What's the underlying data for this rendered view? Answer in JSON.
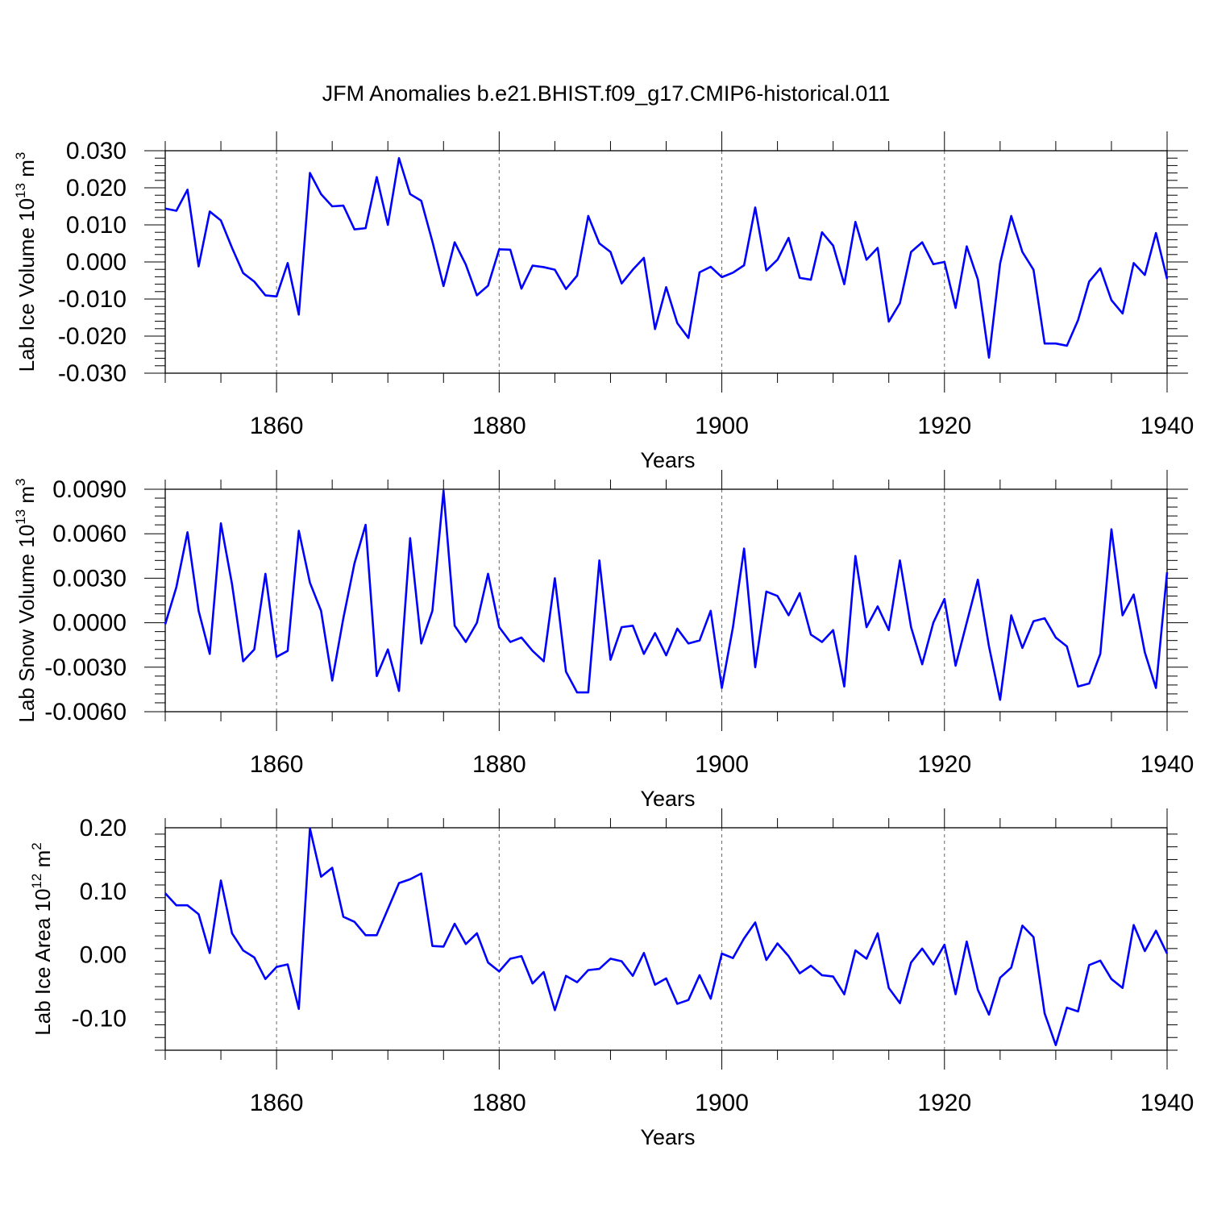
{
  "title": "JFM Anomalies b.e21.BHIST.f09_g17.CMIP6-historical.011",
  "line_color": "#0000ff",
  "chart_data": [
    {
      "type": "line",
      "ylabel_prefix": "Lab Ice Volume 10",
      "ylabel_exp": "13",
      "ylabel_unit": " m",
      "ylabel_unit_exp": "3",
      "xlabel": "Years",
      "xlim": [
        1850,
        1940
      ],
      "ylim": [
        -0.03,
        0.03
      ],
      "xticks": [
        1860,
        1880,
        1900,
        1920,
        1940
      ],
      "xtick_labels": [
        "1860",
        "1880",
        "1900",
        "1920",
        "1940"
      ],
      "yticks": [
        -0.03,
        -0.02,
        -0.01,
        0.0,
        0.01,
        0.02,
        0.03
      ],
      "ytick_labels": [
        "-0.030",
        "-0.020",
        "-0.010",
        "0.000",
        "0.010",
        "0.020",
        "0.030"
      ],
      "series": [
        {
          "name": "Lab Ice Volume",
          "x_start": 1850,
          "values": [
            0.0144,
            0.0138,
            0.0195,
            -0.0012,
            0.0136,
            0.0112,
            0.0038,
            -0.003,
            -0.0053,
            -0.009,
            -0.0093,
            -0.0003,
            -0.0142,
            0.024,
            0.0183,
            0.015,
            0.0152,
            0.0088,
            0.0091,
            0.0229,
            0.01,
            0.028,
            0.0183,
            0.0165,
            0.0055,
            -0.0065,
            0.0053,
            -0.0007,
            -0.009,
            -0.0064,
            0.0034,
            0.0033,
            -0.0072,
            -0.001,
            -0.0014,
            -0.0021,
            -0.0073,
            -0.0037,
            0.0124,
            0.005,
            0.0027,
            -0.0058,
            -0.0021,
            0.0011,
            -0.0181,
            -0.0068,
            -0.0165,
            -0.0205,
            -0.0028,
            -0.0013,
            -0.0041,
            -0.0029,
            -0.0009,
            0.0147,
            -0.0023,
            0.0006,
            0.0065,
            -0.0043,
            -0.0048,
            0.008,
            0.0044,
            -0.006,
            0.0108,
            0.0006,
            0.0038,
            -0.0161,
            -0.0111,
            0.0027,
            0.0053,
            -0.0006,
            0.0,
            -0.0124,
            0.0042,
            -0.0047,
            -0.0258,
            -0.0004,
            0.0124,
            0.0027,
            -0.0021,
            -0.022,
            -0.022,
            -0.0226,
            -0.0157,
            -0.0053,
            -0.0017,
            -0.0103,
            -0.0139,
            -0.0003,
            -0.0035,
            0.0078,
            -0.0046
          ]
        }
      ]
    },
    {
      "type": "line",
      "ylabel_prefix": "Lab Snow Volume 10",
      "ylabel_exp": "13",
      "ylabel_unit": " m",
      "ylabel_unit_exp": "3",
      "xlabel": "Years",
      "xlim": [
        1850,
        1940
      ],
      "ylim": [
        -0.006,
        0.009
      ],
      "xticks": [
        1860,
        1880,
        1900,
        1920,
        1940
      ],
      "xtick_labels": [
        "1860",
        "1880",
        "1900",
        "1920",
        "1940"
      ],
      "yticks": [
        -0.006,
        -0.003,
        0.0,
        0.003,
        0.006,
        0.009
      ],
      "ytick_labels": [
        "-0.0060",
        "-0.0030",
        "0.0000",
        "0.0030",
        "0.0060",
        "0.0090"
      ],
      "series": [
        {
          "name": "Lab Snow Volume",
          "x_start": 1850,
          "values": [
            -0.0001,
            0.0024,
            0.0061,
            0.0008,
            -0.0021,
            0.0067,
            0.0026,
            -0.0026,
            -0.0018,
            0.0033,
            -0.0023,
            -0.0019,
            0.0062,
            0.0027,
            0.0008,
            -0.0039,
            0.0003,
            0.004,
            0.0066,
            -0.0036,
            -0.0018,
            -0.0046,
            0.0057,
            -0.0014,
            0.0008,
            0.0089,
            -0.0002,
            -0.0013,
            0.0,
            0.0033,
            -0.0003,
            -0.0013,
            -0.001,
            -0.0019,
            -0.0026,
            0.003,
            -0.0033,
            -0.0047,
            -0.0047,
            0.0042,
            -0.0025,
            -0.0003,
            -0.0002,
            -0.0021,
            -0.0007,
            -0.0022,
            -0.0004,
            -0.0014,
            -0.0012,
            0.0008,
            -0.0044,
            -0.0003,
            0.005,
            -0.003,
            0.0021,
            0.0018,
            0.0005,
            0.002,
            -0.0008,
            -0.0013,
            -0.0005,
            -0.0043,
            0.0045,
            -0.0003,
            0.0011,
            -0.0005,
            0.0042,
            -0.0003,
            -0.0028,
            0.0,
            0.0016,
            -0.0029,
            0.0,
            0.0029,
            -0.0016,
            -0.0052,
            0.0005,
            -0.0017,
            0.0001,
            0.0003,
            -0.001,
            -0.0016,
            -0.0043,
            -0.0041,
            -0.0021,
            0.0063,
            0.0005,
            0.0019,
            -0.002,
            -0.0044,
            0.0034
          ]
        }
      ]
    },
    {
      "type": "line",
      "ylabel_prefix": "Lab Ice Area 10",
      "ylabel_exp": "12",
      "ylabel_unit": " m",
      "ylabel_unit_exp": "2",
      "xlabel": "Years",
      "xlim": [
        1850,
        1940
      ],
      "ylim": [
        -0.15,
        0.2
      ],
      "xticks": [
        1860,
        1880,
        1900,
        1920,
        1940
      ],
      "xtick_labels": [
        "1860",
        "1880",
        "1900",
        "1920",
        "1940"
      ],
      "yticks": [
        -0.1,
        0.0,
        0.1,
        0.2
      ],
      "ytick_labels": [
        "-0.10",
        "0.00",
        "0.10",
        "0.20"
      ],
      "series": [
        {
          "name": "Lab Ice Area",
          "x_start": 1850,
          "values": [
            0.097,
            0.078,
            0.078,
            0.064,
            0.003,
            0.117,
            0.034,
            0.007,
            -0.004,
            -0.038,
            -0.019,
            -0.015,
            -0.085,
            0.199,
            0.123,
            0.137,
            0.06,
            0.052,
            0.031,
            0.031,
            0.072,
            0.113,
            0.119,
            0.128,
            0.014,
            0.013,
            0.049,
            0.017,
            0.034,
            -0.012,
            -0.026,
            -0.006,
            -0.002,
            -0.045,
            -0.027,
            -0.087,
            -0.033,
            -0.043,
            -0.024,
            -0.022,
            -0.006,
            -0.01,
            -0.033,
            0.003,
            -0.047,
            -0.037,
            -0.077,
            -0.071,
            -0.032,
            -0.069,
            0.002,
            -0.005,
            0.026,
            0.051,
            -0.008,
            0.018,
            -0.002,
            -0.029,
            -0.017,
            -0.032,
            -0.034,
            -0.062,
            0.007,
            -0.006,
            0.034,
            -0.052,
            -0.076,
            -0.012,
            0.01,
            -0.015,
            0.016,
            -0.062,
            0.021,
            -0.055,
            -0.094,
            -0.036,
            -0.02,
            0.046,
            0.028,
            -0.092,
            -0.142,
            -0.083,
            -0.089,
            -0.016,
            -0.009,
            -0.038,
            -0.052,
            0.047,
            0.006,
            0.038,
            0.002
          ]
        }
      ]
    }
  ]
}
